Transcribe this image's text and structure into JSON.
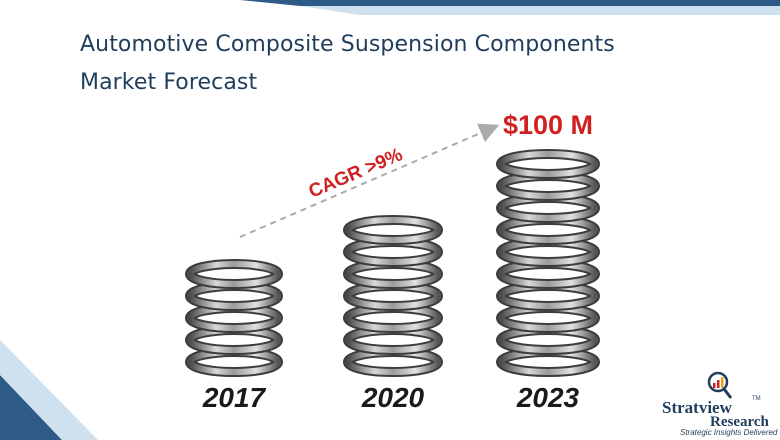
{
  "title": {
    "line1": "Automotive Composite Suspension Components",
    "line2": "Market Forecast"
  },
  "chart_data": {
    "type": "bar",
    "categories": [
      "2017",
      "2020",
      "2023"
    ],
    "values": [
      null,
      null,
      100
    ],
    "value_labels": [
      "",
      "",
      "$100 M"
    ],
    "annotation": "CAGR >9%",
    "coil_counts": [
      5,
      7,
      10
    ]
  },
  "logo": {
    "name": "Stratview",
    "sub": "Research",
    "tagline": "Strategic Insights Delivered",
    "tm": "TM"
  },
  "colors": {
    "title": "#1f3d5c",
    "accent_red": "#d0201f",
    "deco_blue": "#2e5a88",
    "deco_light": "#cfe0ef"
  }
}
